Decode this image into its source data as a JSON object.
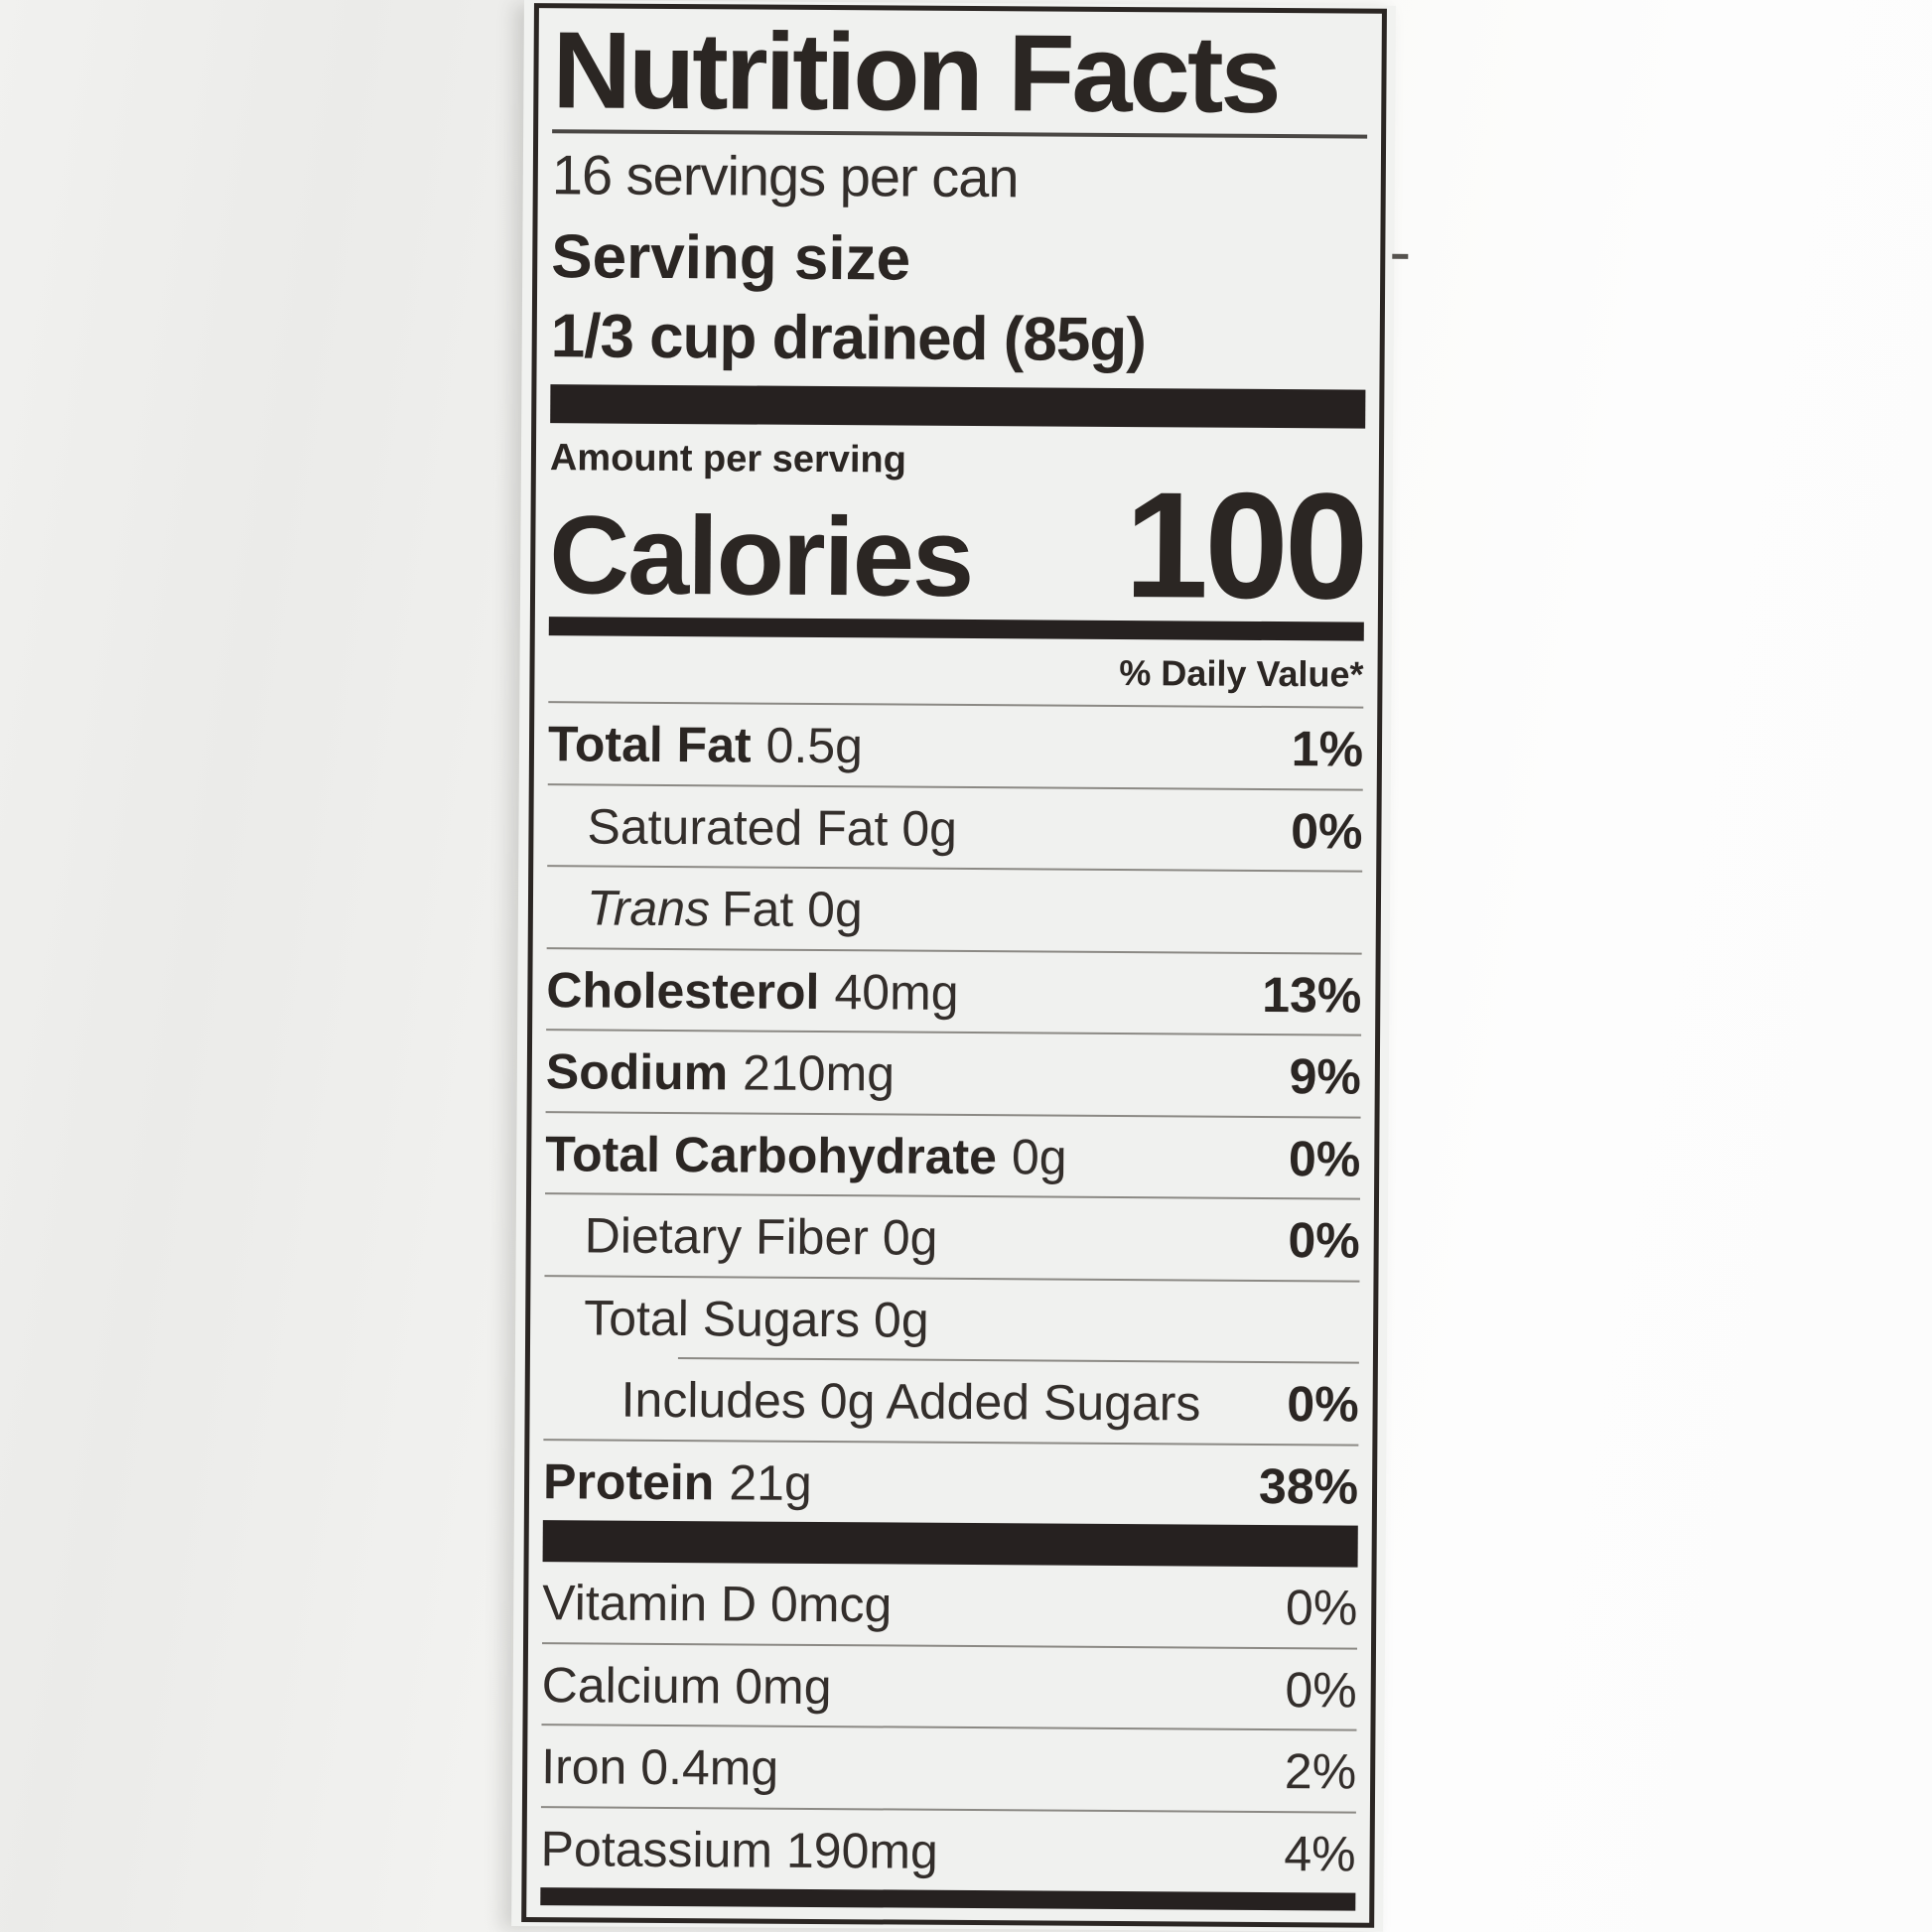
{
  "label": {
    "title": "Nutrition Facts",
    "servings_per_container": "16 servings per can",
    "serving_size": {
      "label": "Serving size",
      "value": "1/3 cup drained (85g)"
    },
    "amount_per_serving": "Amount per serving",
    "calories": {
      "label": "Calories",
      "value": "100"
    },
    "daily_value_header": "% Daily Value*",
    "nutrients": [
      {
        "name": "Total Fat",
        "amount": "0.5g",
        "daily_value": "1%"
      },
      {
        "name": "Saturated Fat",
        "amount": "0g",
        "daily_value": "0%"
      },
      {
        "name": "Trans",
        "amount": "Fat 0g",
        "daily_value": ""
      },
      {
        "name": "Cholesterol",
        "amount": "40mg",
        "daily_value": "13%"
      },
      {
        "name": "Sodium",
        "amount": "210mg",
        "daily_value": "9%"
      },
      {
        "name": "Total Carbohydrate",
        "amount": "0g",
        "daily_value": "0%"
      },
      {
        "name": "Dietary Fiber",
        "amount": "0g",
        "daily_value": "0%"
      },
      {
        "name": "Total Sugars",
        "amount": "0g",
        "daily_value": ""
      },
      {
        "name": "Includes 0g Added Sugars",
        "amount": "",
        "daily_value": "0%"
      },
      {
        "name": "Protein",
        "amount": "21g",
        "daily_value": "38%"
      }
    ],
    "micronutrients": [
      {
        "name": "Vitamin D 0mcg",
        "daily_value": "0%"
      },
      {
        "name": "Calcium 0mg",
        "daily_value": "0%"
      },
      {
        "name": "Iron 0.4mg",
        "daily_value": "2%"
      },
      {
        "name": "Potassium 190mg",
        "daily_value": "4%"
      }
    ]
  },
  "colors": {
    "ink": "#2b2623",
    "bar": "#262120",
    "paper": "#f0f1ef",
    "hairline": "#8b8984",
    "page_left": "#ebebe9",
    "page_right": "#fdfdfd"
  }
}
